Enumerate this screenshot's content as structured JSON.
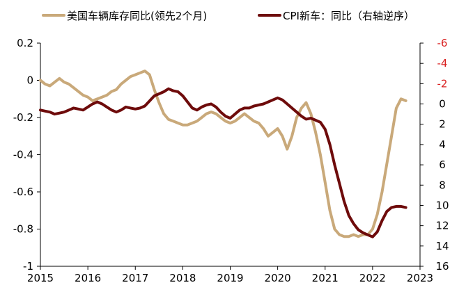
{
  "chart_data": {
    "type": "line",
    "title": "",
    "legend": {
      "position": "top",
      "entries": [
        "美国车辆库存同比(领先2个月)",
        "CPI新车：同比（右轴逆序）"
      ]
    },
    "colors": {
      "inventory": "#C9A97A",
      "cpi": "#6E0B0B",
      "right_axis_ticks": "#D91F1F",
      "axis": "#000000"
    },
    "x_axis": {
      "ticks": [
        "2015",
        "2016",
        "2017",
        "2018",
        "2019",
        "2020",
        "2021",
        "2022",
        "2023"
      ],
      "range": [
        2015,
        2023
      ]
    },
    "y_left": {
      "ticks": [
        "0.2",
        "0",
        "-0.2",
        "-0.4",
        "-0.6",
        "-0.8",
        "-1"
      ],
      "range": [
        -1,
        0.2
      ]
    },
    "y_right": {
      "ticks": [
        "-6",
        "-4",
        "-2",
        "0",
        "2",
        "4",
        "6",
        "8",
        "10",
        "12",
        "14",
        "16"
      ],
      "range": [
        -6,
        16
      ],
      "inverted": true
    },
    "series": [
      {
        "name": "美国车辆库存同比(领先2个月)",
        "axis": "left",
        "x": [
          2015.0,
          2015.1,
          2015.2,
          2015.3,
          2015.4,
          2015.5,
          2015.6,
          2015.7,
          2015.8,
          2015.9,
          2016.0,
          2016.1,
          2016.2,
          2016.3,
          2016.4,
          2016.5,
          2016.6,
          2016.7,
          2016.8,
          2016.9,
          2017.0,
          2017.1,
          2017.2,
          2017.3,
          2017.4,
          2017.5,
          2017.6,
          2017.7,
          2017.8,
          2017.9,
          2018.0,
          2018.1,
          2018.2,
          2018.3,
          2018.4,
          2018.5,
          2018.6,
          2018.7,
          2018.8,
          2018.9,
          2019.0,
          2019.1,
          2019.2,
          2019.3,
          2019.4,
          2019.5,
          2019.6,
          2019.7,
          2019.8,
          2019.9,
          2020.0,
          2020.1,
          2020.2,
          2020.3,
          2020.4,
          2020.5,
          2020.6,
          2020.7,
          2020.8,
          2020.9,
          2021.0,
          2021.1,
          2021.2,
          2021.3,
          2021.4,
          2021.5,
          2021.6,
          2021.7,
          2021.8,
          2021.9,
          2022.0,
          2022.1,
          2022.2,
          2022.3,
          2022.4,
          2022.5,
          2022.6,
          2022.7
        ],
        "values": [
          0.0,
          -0.02,
          -0.03,
          -0.01,
          0.01,
          -0.01,
          -0.02,
          -0.04,
          -0.06,
          -0.08,
          -0.09,
          -0.11,
          -0.1,
          -0.09,
          -0.08,
          -0.06,
          -0.05,
          -0.02,
          0.0,
          0.02,
          0.03,
          0.04,
          0.05,
          0.03,
          -0.05,
          -0.12,
          -0.18,
          -0.21,
          -0.22,
          -0.23,
          -0.24,
          -0.24,
          -0.23,
          -0.22,
          -0.2,
          -0.18,
          -0.17,
          -0.18,
          -0.2,
          -0.22,
          -0.23,
          -0.22,
          -0.2,
          -0.18,
          -0.2,
          -0.22,
          -0.23,
          -0.26,
          -0.3,
          -0.28,
          -0.26,
          -0.3,
          -0.37,
          -0.3,
          -0.2,
          -0.15,
          -0.12,
          -0.18,
          -0.28,
          -0.4,
          -0.55,
          -0.7,
          -0.8,
          -0.83,
          -0.84,
          -0.84,
          -0.83,
          -0.84,
          -0.83,
          -0.83,
          -0.8,
          -0.72,
          -0.6,
          -0.45,
          -0.3,
          -0.15,
          -0.1,
          -0.11
        ]
      },
      {
        "name": "CPI新车：同比（右轴逆序）",
        "axis": "right",
        "x": [
          2015.0,
          2015.1,
          2015.2,
          2015.3,
          2015.4,
          2015.5,
          2015.6,
          2015.7,
          2015.8,
          2015.9,
          2016.0,
          2016.1,
          2016.2,
          2016.3,
          2016.4,
          2016.5,
          2016.6,
          2016.7,
          2016.8,
          2016.9,
          2017.0,
          2017.1,
          2017.2,
          2017.3,
          2017.4,
          2017.5,
          2017.6,
          2017.7,
          2017.8,
          2017.9,
          2018.0,
          2018.1,
          2018.2,
          2018.3,
          2018.4,
          2018.5,
          2018.6,
          2018.7,
          2018.8,
          2018.9,
          2019.0,
          2019.1,
          2019.2,
          2019.3,
          2019.4,
          2019.5,
          2019.6,
          2019.7,
          2019.8,
          2019.9,
          2020.0,
          2020.1,
          2020.2,
          2020.3,
          2020.4,
          2020.5,
          2020.6,
          2020.7,
          2020.8,
          2020.9,
          2021.0,
          2021.1,
          2021.2,
          2021.3,
          2021.4,
          2021.5,
          2021.6,
          2021.7,
          2021.8,
          2021.9,
          2022.0,
          2022.1,
          2022.2,
          2022.3,
          2022.4,
          2022.5,
          2022.6,
          2022.7
        ],
        "values": [
          0.6,
          0.7,
          0.8,
          1.0,
          0.9,
          0.8,
          0.6,
          0.4,
          0.5,
          0.6,
          0.3,
          0.0,
          -0.2,
          0.0,
          0.3,
          0.6,
          0.8,
          0.6,
          0.3,
          0.4,
          0.5,
          0.4,
          0.2,
          -0.3,
          -0.8,
          -1.0,
          -1.2,
          -1.5,
          -1.3,
          -1.2,
          -0.8,
          -0.2,
          0.4,
          0.6,
          0.3,
          0.1,
          0.0,
          0.3,
          0.8,
          1.2,
          1.4,
          1.0,
          0.6,
          0.4,
          0.4,
          0.2,
          0.1,
          0.0,
          -0.2,
          -0.4,
          -0.6,
          -0.4,
          0.0,
          0.4,
          0.8,
          1.2,
          1.5,
          1.4,
          1.6,
          1.8,
          2.5,
          4.0,
          6.0,
          7.8,
          9.6,
          11.0,
          11.8,
          12.4,
          12.7,
          12.9,
          13.1,
          12.6,
          11.5,
          10.6,
          10.2,
          10.1,
          10.1,
          10.2
        ]
      }
    ]
  }
}
